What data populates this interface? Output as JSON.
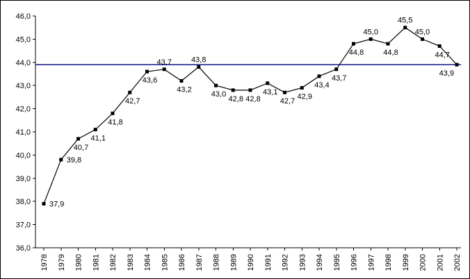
{
  "chart": {
    "background_color": "#ffffff",
    "axis_color": "#000000",
    "text_color": "#000000",
    "border_color": "#000000"
  },
  "chart_data": {
    "type": "line",
    "title": "",
    "xlabel": "",
    "ylabel": "",
    "grid": false,
    "legend_position": "none",
    "ylim": [
      36.0,
      46.0
    ],
    "ytick_step": 1.0,
    "decimal_separator": ",",
    "ytick_labels": [
      "36,0",
      "37,0",
      "38,0",
      "39,0",
      "40,0",
      "41,0",
      "42,0",
      "43,0",
      "44,0",
      "45,0",
      "46,0"
    ],
    "categories": [
      "1978",
      "1979",
      "1980",
      "1981",
      "1982",
      "1983",
      "1984",
      "1985",
      "1986",
      "1987",
      "1988",
      "1989",
      "1990",
      "1991",
      "1992",
      "1993",
      "1994",
      "1995",
      "1996",
      "1997",
      "1998",
      "1999",
      "2000",
      "2001",
      "2002"
    ],
    "series": [
      {
        "name": "series-1",
        "color": "#000000",
        "marker": "square",
        "values": [
          37.9,
          39.8,
          40.7,
          41.1,
          41.8,
          42.7,
          43.6,
          43.7,
          43.2,
          43.8,
          43.0,
          42.8,
          42.8,
          43.1,
          42.7,
          42.9,
          43.4,
          43.7,
          44.8,
          45.0,
          44.8,
          45.5,
          45.0,
          44.7,
          43.9
        ]
      }
    ],
    "point_labels": [
      "37,9",
      "39,8",
      "40,7",
      "41,1",
      "41,8",
      "42,7",
      "43,6",
      "43,7",
      "43,2",
      "43,8",
      "43,0",
      "42,8",
      "42,8",
      "43,1",
      "42,7",
      "42,9",
      "43,4",
      "43,7",
      "44,8",
      "45,0",
      "44,8",
      "45,5",
      "45,0",
      "44,7",
      "43,9"
    ],
    "point_label_placements": [
      "right",
      "right",
      "below",
      "below",
      "below",
      "below",
      "below",
      "above",
      "below",
      "above",
      "below",
      "below",
      "below",
      "below",
      "below",
      "below",
      "below",
      "below",
      "below",
      "above",
      "below",
      "above",
      "above",
      "below",
      "below-left"
    ],
    "reference_line": {
      "value": 43.9,
      "color": "#000080"
    }
  }
}
